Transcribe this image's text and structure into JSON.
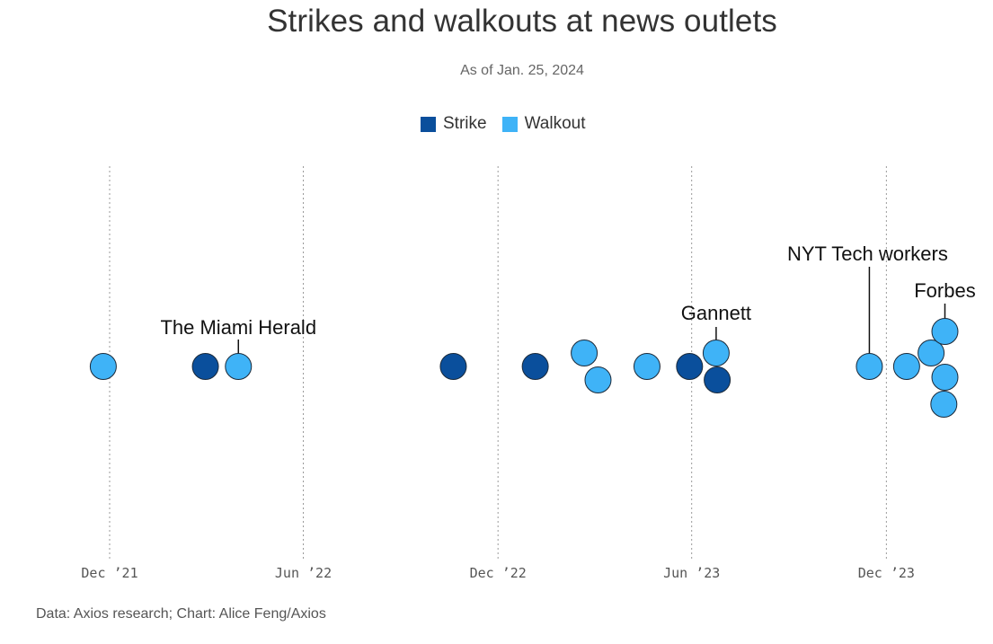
{
  "chart_data": {
    "type": "scatter",
    "title": "Strikes and walkouts at news outlets",
    "subtitle": "As of Jan. 25, 2024",
    "footer": "Data: Axios research; Chart: Alice Feng/Axios",
    "legend_placement": "top-center",
    "x_axis": {
      "type": "date",
      "range": [
        "2021-11-15",
        "2024-02-10"
      ],
      "ticks": [
        {
          "date": "2021-12-01",
          "label": "Dec ’21"
        },
        {
          "date": "2022-06-01",
          "label": "Jun ’22"
        },
        {
          "date": "2022-12-01",
          "label": "Dec ’22"
        },
        {
          "date": "2023-06-01",
          "label": "Jun ’23"
        },
        {
          "date": "2023-12-01",
          "label": "Dec ’23"
        }
      ],
      "gridlines": "dotted vertical at ticks"
    },
    "series": [
      {
        "name": "Strike",
        "color": "#0a4f9c"
      },
      {
        "name": "Walkout",
        "color": "#3fb3f7"
      }
    ],
    "events": [
      {
        "date": "2021-11-25",
        "type": "Walkout",
        "row": 0
      },
      {
        "date": "2022-03-01",
        "type": "Strike",
        "row": 0
      },
      {
        "date": "2022-04-01",
        "type": "Walkout",
        "row": 0,
        "label": "The Miami Herald"
      },
      {
        "date": "2022-10-20",
        "type": "Strike",
        "row": 0
      },
      {
        "date": "2023-01-05",
        "type": "Strike",
        "row": 0
      },
      {
        "date": "2023-02-20",
        "type": "Walkout",
        "row": 0.5
      },
      {
        "date": "2023-03-05",
        "type": "Walkout",
        "row": -0.5
      },
      {
        "date": "2023-04-20",
        "type": "Walkout",
        "row": 0
      },
      {
        "date": "2023-05-30",
        "type": "Strike",
        "row": 0
      },
      {
        "date": "2023-06-24",
        "type": "Walkout",
        "row": 0.5,
        "label": "Gannett"
      },
      {
        "date": "2023-06-25",
        "type": "Strike",
        "row": -0.5
      },
      {
        "date": "2023-11-15",
        "type": "Walkout",
        "row": 0,
        "label": "NYT Tech workers"
      },
      {
        "date": "2023-12-20",
        "type": "Walkout",
        "row": 0
      },
      {
        "date": "2024-01-12",
        "type": "Walkout",
        "row": 0.5
      },
      {
        "date": "2024-01-25",
        "type": "Walkout",
        "row": 1.3,
        "label": "Forbes"
      },
      {
        "date": "2024-01-25",
        "type": "Walkout",
        "row": -0.4
      },
      {
        "date": "2024-01-24",
        "type": "Walkout",
        "row": -1.4
      }
    ]
  }
}
